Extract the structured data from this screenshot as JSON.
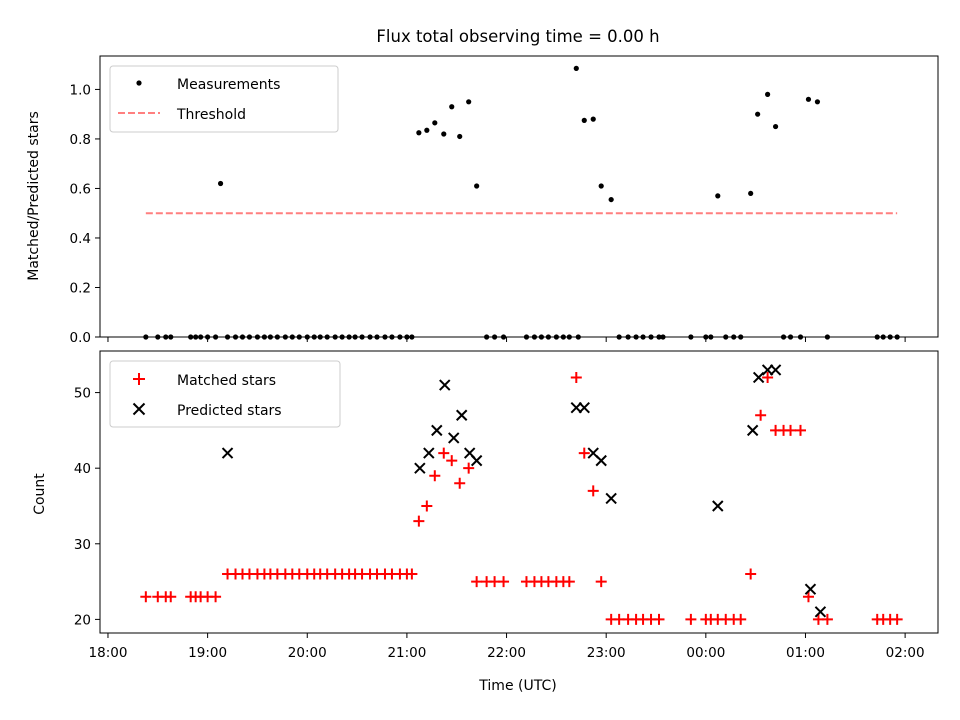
{
  "chart_data": {
    "type": "scatter",
    "title": "Flux total observing time = 0.00 h",
    "xlabel": "Time (UTC)",
    "x_unit": "hours since 18:00 UTC",
    "xlim": [
      -0.08,
      8.33
    ],
    "x_ticks": [
      {
        "v": 0,
        "label": "18:00"
      },
      {
        "v": 1,
        "label": "19:00"
      },
      {
        "v": 2,
        "label": "20:00"
      },
      {
        "v": 3,
        "label": "21:00"
      },
      {
        "v": 4,
        "label": "22:00"
      },
      {
        "v": 5,
        "label": "23:00"
      },
      {
        "v": 6,
        "label": "00:00"
      },
      {
        "v": 7,
        "label": "01:00"
      },
      {
        "v": 8,
        "label": "02:00"
      }
    ],
    "panels": [
      {
        "ylabel": "Matched/Predicted stars",
        "ylim": [
          0,
          1.135
        ],
        "y_ticks": [
          {
            "v": 0,
            "label": "0.0"
          },
          {
            "v": 0.2,
            "label": "0.2"
          },
          {
            "v": 0.4,
            "label": "0.4"
          },
          {
            "v": 0.6,
            "label": "0.6"
          },
          {
            "v": 0.8,
            "label": "0.8"
          },
          {
            "v": 1.0,
            "label": "1.0"
          }
        ],
        "legend": [
          {
            "label": "Measurements",
            "marker": "dot",
            "color": "#000000"
          },
          {
            "label": "Threshold",
            "marker": "dashed-line",
            "color": "#ff7f7f"
          }
        ],
        "threshold": {
          "x0": 0.38,
          "x1": 7.92,
          "y": 0.5
        },
        "measurements": {
          "x": [
            0.38,
            0.5,
            0.58,
            0.63,
            0.83,
            0.88,
            0.93,
            1.0,
            1.08,
            1.13,
            1.2,
            1.28,
            1.35,
            1.42,
            1.5,
            1.57,
            1.63,
            1.7,
            1.78,
            1.85,
            1.92,
            2.0,
            2.07,
            2.13,
            2.2,
            2.28,
            2.35,
            2.42,
            2.48,
            2.55,
            2.63,
            2.7,
            2.78,
            2.85,
            2.93,
            3.0,
            3.05,
            3.12,
            3.2,
            3.28,
            3.37,
            3.45,
            3.53,
            3.62,
            3.7,
            3.8,
            3.88,
            3.97,
            4.2,
            4.28,
            4.35,
            4.42,
            4.5,
            4.57,
            4.63,
            4.7,
            4.72,
            4.78,
            4.87,
            4.95,
            5.05,
            5.13,
            5.22,
            5.3,
            5.37,
            5.45,
            5.53,
            5.57,
            5.85,
            6.0,
            6.05,
            6.12,
            6.2,
            6.28,
            6.35,
            6.45,
            6.52,
            6.62,
            6.7,
            6.78,
            6.85,
            6.95,
            7.03,
            7.12,
            7.22,
            7.72,
            7.78,
            7.85,
            7.92
          ],
          "y": [
            0,
            0,
            0,
            0,
            0,
            0,
            0,
            0,
            0,
            0.62,
            0,
            0,
            0,
            0,
            0,
            0,
            0,
            0,
            0,
            0,
            0,
            0,
            0,
            0,
            0,
            0,
            0,
            0,
            0,
            0,
            0,
            0,
            0,
            0,
            0,
            0,
            0,
            0.825,
            0.835,
            0.865,
            0.82,
            0.93,
            0.81,
            0.95,
            0.61,
            0,
            0,
            0,
            0,
            0,
            0,
            0,
            0,
            0,
            0,
            1.085,
            0,
            0.875,
            0.88,
            0.61,
            0.555,
            0,
            0,
            0,
            0,
            0,
            0,
            0,
            0,
            0,
            0,
            0.57,
            0,
            0,
            0,
            0.58,
            0.9,
            0.98,
            0.85,
            0,
            0,
            0,
            0.96,
            0.95,
            0,
            0,
            0,
            0,
            0
          ]
        }
      },
      {
        "ylabel": "Count",
        "ylim": [
          18.2,
          55.5
        ],
        "y_ticks": [
          {
            "v": 20,
            "label": "20"
          },
          {
            "v": 30,
            "label": "30"
          },
          {
            "v": 40,
            "label": "40"
          },
          {
            "v": 50,
            "label": "50"
          }
        ],
        "legend": [
          {
            "label": "Matched stars",
            "marker": "plus",
            "color": "#ff0000"
          },
          {
            "label": "Predicted stars",
            "marker": "x",
            "color": "#000000"
          }
        ],
        "matched_stars": {
          "x": [
            0.38,
            0.5,
            0.58,
            0.63,
            0.83,
            0.88,
            0.93,
            1.0,
            1.08,
            1.2,
            1.28,
            1.35,
            1.42,
            1.5,
            1.57,
            1.63,
            1.7,
            1.78,
            1.85,
            1.92,
            2.0,
            2.07,
            2.13,
            2.2,
            2.28,
            2.35,
            2.42,
            2.48,
            2.55,
            2.63,
            2.7,
            2.78,
            2.85,
            2.93,
            3.0,
            3.05,
            3.12,
            3.2,
            3.28,
            3.37,
            3.45,
            3.53,
            3.62,
            3.7,
            3.8,
            3.88,
            3.97,
            4.2,
            4.28,
            4.35,
            4.42,
            4.5,
            4.57,
            4.63,
            4.7,
            4.78,
            4.87,
            4.95,
            5.05,
            5.13,
            5.22,
            5.3,
            5.37,
            5.45,
            5.53,
            5.85,
            6.0,
            6.05,
            6.12,
            6.2,
            6.28,
            6.35,
            6.45,
            6.55,
            6.62,
            6.7,
            6.78,
            6.85,
            6.95,
            7.03,
            7.13,
            7.22,
            7.72,
            7.78,
            7.85,
            7.92
          ],
          "y": [
            23,
            23,
            23,
            23,
            23,
            23,
            23,
            23,
            23,
            26,
            26,
            26,
            26,
            26,
            26,
            26,
            26,
            26,
            26,
            26,
            26,
            26,
            26,
            26,
            26,
            26,
            26,
            26,
            26,
            26,
            26,
            26,
            26,
            26,
            26,
            26,
            33,
            35,
            39,
            42,
            41,
            38,
            40,
            25,
            25,
            25,
            25,
            25,
            25,
            25,
            25,
            25,
            25,
            25,
            52,
            42,
            37,
            25,
            20,
            20,
            20,
            20,
            20,
            20,
            20,
            20,
            20,
            20,
            20,
            20,
            20,
            20,
            26,
            47,
            52,
            45,
            45,
            45,
            45,
            23,
            20,
            20,
            20,
            20,
            20,
            20
          ]
        },
        "predicted_stars": {
          "x": [
            1.2,
            3.13,
            3.22,
            3.3,
            3.38,
            3.47,
            3.55,
            3.63,
            3.7,
            4.7,
            4.78,
            4.87,
            4.95,
            5.05,
            6.12,
            6.47,
            6.53,
            6.62,
            6.7,
            7.05,
            7.15
          ],
          "y": [
            42,
            40,
            42,
            45,
            51,
            44,
            47,
            42,
            41,
            48,
            48,
            42,
            41,
            36,
            35,
            45,
            52,
            53,
            53,
            24,
            21
          ]
        }
      }
    ]
  }
}
